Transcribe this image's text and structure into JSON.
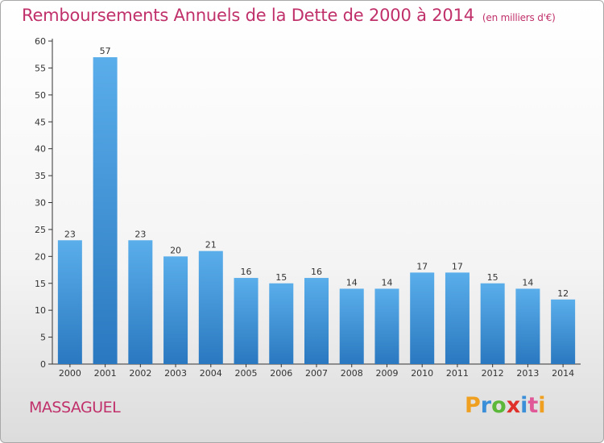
{
  "title": "Remboursements Annuels de la Dette de 2000 à 2014",
  "subtitle": "(en milliers d'€)",
  "commune": "MASSAGUEL",
  "logo": {
    "letters": [
      "P",
      "r",
      "o",
      "x",
      "i",
      "t",
      "i"
    ],
    "colors": [
      "#f0a020",
      "#3a8fd8",
      "#5cb83a",
      "#e0302a",
      "#3a8fd8",
      "#e05898",
      "#f0a020"
    ]
  },
  "colors": {
    "bar": "#4a9fe0",
    "bar_dark": "#2a78c0",
    "title": "#c0306a"
  },
  "chart_data": {
    "type": "bar",
    "title": "Remboursements Annuels de la Dette de 2000 à 2014",
    "subtitle": "(en milliers d'€)",
    "categories": [
      "2000",
      "2001",
      "2002",
      "2003",
      "2004",
      "2005",
      "2006",
      "2007",
      "2008",
      "2009",
      "2010",
      "2011",
      "2012",
      "2013",
      "2014"
    ],
    "values": [
      23,
      57,
      23,
      20,
      21,
      16,
      15,
      16,
      14,
      14,
      17,
      17,
      15,
      14,
      12
    ],
    "ylim": [
      0,
      60
    ],
    "yticks": [
      0,
      5,
      10,
      15,
      20,
      25,
      30,
      35,
      40,
      45,
      50,
      55,
      60
    ],
    "grid": false,
    "legend": "none"
  }
}
